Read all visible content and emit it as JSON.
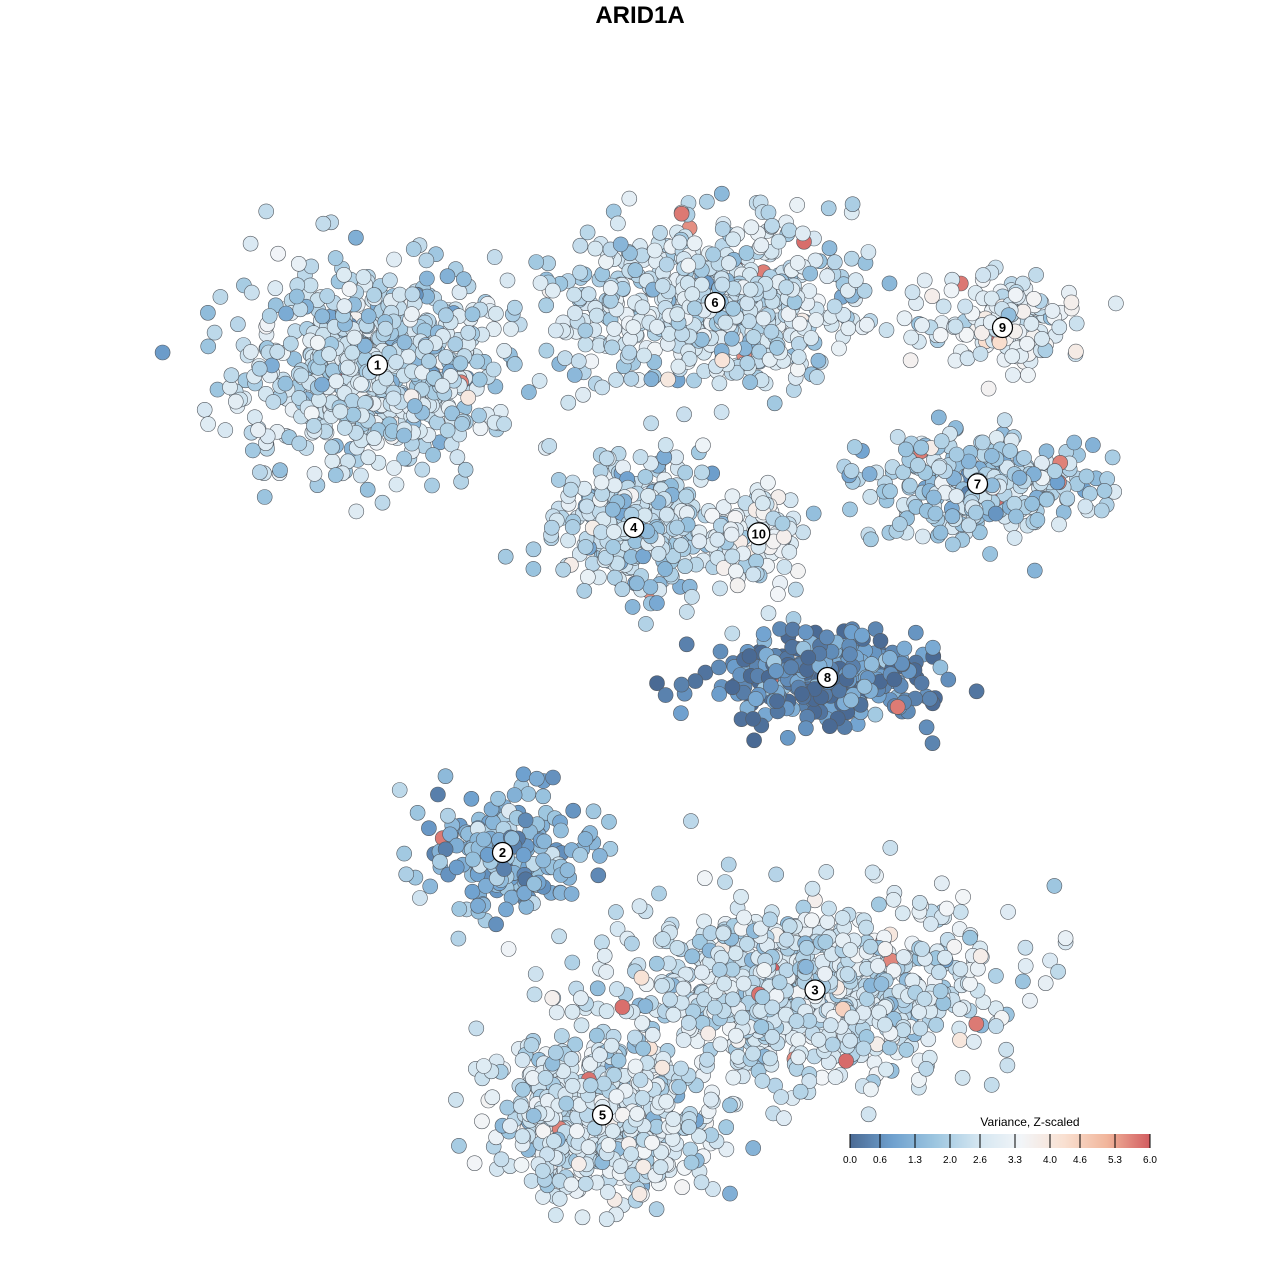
{
  "chart_data": {
    "type": "scatter",
    "title": "ARID1A",
    "color_scale": {
      "title": "Variance, Z-scaled",
      "min": 0.0,
      "max": 6.0,
      "ticks": [
        "0.0",
        "0.6",
        "1.3",
        "2.0",
        "2.6",
        "3.3",
        "4.0",
        "4.6",
        "5.3",
        "6.0"
      ],
      "colors": [
        "#4a6a94",
        "#6fa1cf",
        "#9dc6e0",
        "#d4e6f1",
        "#f2f5f8",
        "#f9e0d1",
        "#f1b59b",
        "#d25c60"
      ]
    },
    "clusters": [
      {
        "label": "1",
        "x": -21.0,
        "y": 22.0,
        "sx": 10.0,
        "sy": 7.5,
        "mean": 2.3,
        "n": 700
      },
      {
        "label": "6",
        "x": 6.0,
        "y": 27.0,
        "sx": 11.0,
        "sy": 5.5,
        "mean": 2.4,
        "n": 620
      },
      {
        "label": "4",
        "x": -0.5,
        "y": 9.0,
        "sx": 6.0,
        "sy": 5.0,
        "mean": 2.2,
        "n": 360
      },
      {
        "label": "10",
        "x": 9.5,
        "y": 8.5,
        "sx": 3.0,
        "sy": 3.5,
        "mean": 2.8,
        "n": 90
      },
      {
        "label": "9",
        "x": 29.0,
        "y": 25.0,
        "sx": 5.5,
        "sy": 3.0,
        "mean": 2.9,
        "n": 160
      },
      {
        "label": "7",
        "x": 27.0,
        "y": 12.5,
        "sx": 9.0,
        "sy": 3.5,
        "mean": 2.1,
        "n": 300
      },
      {
        "label": "8",
        "x": 15.0,
        "y": -3.0,
        "sx": 8.0,
        "sy": 3.5,
        "mean": 0.5,
        "n": 330
      },
      {
        "label": "2",
        "x": -11.0,
        "y": -17.0,
        "sx": 6.0,
        "sy": 4.5,
        "mean": 1.3,
        "n": 200
      },
      {
        "label": "3",
        "x": 14.0,
        "y": -28.0,
        "sx": 13.0,
        "sy": 6.5,
        "mean": 2.5,
        "n": 820
      },
      {
        "label": "5",
        "x": -3.0,
        "y": -38.0,
        "sx": 8.0,
        "sy": 6.0,
        "mean": 2.6,
        "n": 620
      }
    ]
  },
  "legend": {
    "title": "Variance, Z-scaled"
  }
}
